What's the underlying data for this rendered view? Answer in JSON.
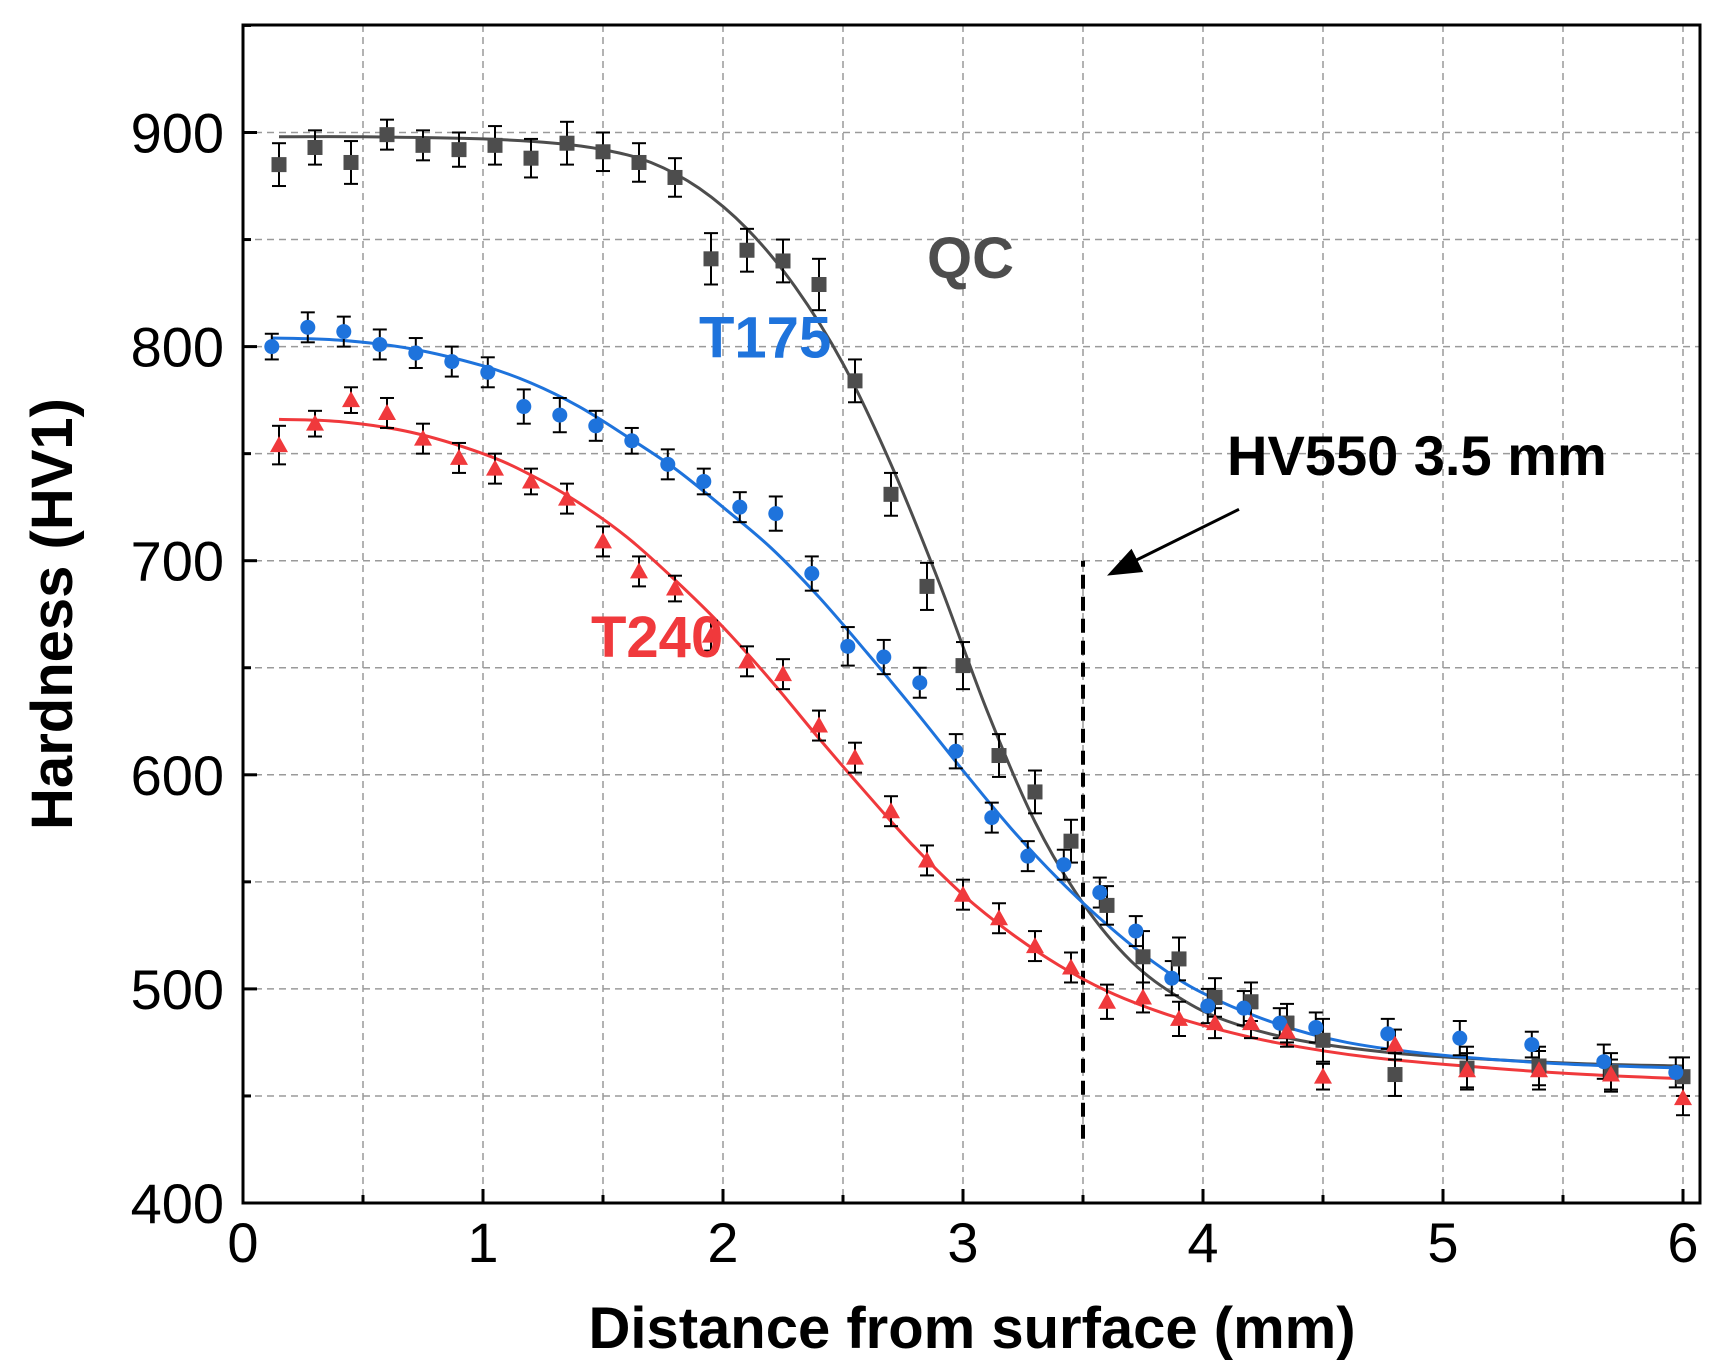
{
  "chart_data": {
    "type": "scatter",
    "title": "",
    "xlabel": "Distance from surface (mm)",
    "ylabel": "Hardness (HV1)",
    "xlim": [
      0,
      6.05
    ],
    "ylim": [
      400,
      950
    ],
    "x_ticks": [
      "0",
      "1",
      "2",
      "3",
      "4",
      "5",
      "6"
    ],
    "y_ticks": [
      "400",
      "500",
      "600",
      "700",
      "800",
      "900"
    ],
    "grid": true,
    "series": [
      {
        "name": "QC",
        "color": "#4d4d4d",
        "marker": "square",
        "points": [
          {
            "x": 0.15,
            "y": 885,
            "err": 10
          },
          {
            "x": 0.3,
            "y": 893,
            "err": 8
          },
          {
            "x": 0.45,
            "y": 886,
            "err": 10
          },
          {
            "x": 0.6,
            "y": 899,
            "err": 7
          },
          {
            "x": 0.75,
            "y": 894,
            "err": 7
          },
          {
            "x": 0.9,
            "y": 892,
            "err": 8
          },
          {
            "x": 1.05,
            "y": 894,
            "err": 9
          },
          {
            "x": 1.2,
            "y": 888,
            "err": 9
          },
          {
            "x": 1.35,
            "y": 895,
            "err": 10
          },
          {
            "x": 1.5,
            "y": 891,
            "err": 9
          },
          {
            "x": 1.65,
            "y": 886,
            "err": 9
          },
          {
            "x": 1.8,
            "y": 879,
            "err": 9
          },
          {
            "x": 1.95,
            "y": 841,
            "err": 12
          },
          {
            "x": 2.1,
            "y": 845,
            "err": 10
          },
          {
            "x": 2.25,
            "y": 840,
            "err": 10
          },
          {
            "x": 2.4,
            "y": 829,
            "err": 12
          },
          {
            "x": 2.55,
            "y": 784,
            "err": 10
          },
          {
            "x": 2.7,
            "y": 731,
            "err": 10
          },
          {
            "x": 2.85,
            "y": 688,
            "err": 11
          },
          {
            "x": 3.0,
            "y": 651,
            "err": 11
          },
          {
            "x": 3.15,
            "y": 609,
            "err": 10
          },
          {
            "x": 3.3,
            "y": 592,
            "err": 10
          },
          {
            "x": 3.45,
            "y": 569,
            "err": 10
          },
          {
            "x": 3.6,
            "y": 539,
            "err": 9
          },
          {
            "x": 3.75,
            "y": 515,
            "err": 12
          },
          {
            "x": 3.9,
            "y": 514,
            "err": 10
          },
          {
            "x": 4.05,
            "y": 496,
            "err": 9
          },
          {
            "x": 4.2,
            "y": 494,
            "err": 9
          },
          {
            "x": 4.35,
            "y": 484,
            "err": 9
          },
          {
            "x": 4.5,
            "y": 476,
            "err": 10
          },
          {
            "x": 4.8,
            "y": 460,
            "err": 10
          },
          {
            "x": 5.1,
            "y": 463,
            "err": 10
          },
          {
            "x": 5.4,
            "y": 464,
            "err": 9
          },
          {
            "x": 5.7,
            "y": 461,
            "err": 9
          },
          {
            "x": 6.0,
            "y": 459,
            "err": 9
          }
        ],
        "fit": [
          {
            "x": 0.15,
            "y": 898
          },
          {
            "x": 0.5,
            "y": 898
          },
          {
            "x": 1.0,
            "y": 897
          },
          {
            "x": 1.3,
            "y": 895
          },
          {
            "x": 1.5,
            "y": 892
          },
          {
            "x": 1.7,
            "y": 886
          },
          {
            "x": 1.9,
            "y": 874
          },
          {
            "x": 2.1,
            "y": 855
          },
          {
            "x": 2.3,
            "y": 828
          },
          {
            "x": 2.5,
            "y": 792
          },
          {
            "x": 2.7,
            "y": 745
          },
          {
            "x": 2.9,
            "y": 690
          },
          {
            "x": 3.1,
            "y": 630
          },
          {
            "x": 3.3,
            "y": 578
          },
          {
            "x": 3.5,
            "y": 540
          },
          {
            "x": 3.7,
            "y": 513
          },
          {
            "x": 3.9,
            "y": 496
          },
          {
            "x": 4.1,
            "y": 485
          },
          {
            "x": 4.4,
            "y": 476
          },
          {
            "x": 4.8,
            "y": 470
          },
          {
            "x": 5.2,
            "y": 467
          },
          {
            "x": 5.6,
            "y": 465
          },
          {
            "x": 6.0,
            "y": 464
          }
        ]
      },
      {
        "name": "T175",
        "color": "#1e73dc",
        "marker": "circle",
        "points": [
          {
            "x": 0.12,
            "y": 800,
            "err": 6
          },
          {
            "x": 0.27,
            "y": 809,
            "err": 7
          },
          {
            "x": 0.42,
            "y": 807,
            "err": 7
          },
          {
            "x": 0.57,
            "y": 801,
            "err": 7
          },
          {
            "x": 0.72,
            "y": 797,
            "err": 7
          },
          {
            "x": 0.87,
            "y": 793,
            "err": 7
          },
          {
            "x": 1.02,
            "y": 788,
            "err": 7
          },
          {
            "x": 1.17,
            "y": 772,
            "err": 8
          },
          {
            "x": 1.32,
            "y": 768,
            "err": 8
          },
          {
            "x": 1.47,
            "y": 763,
            "err": 7
          },
          {
            "x": 1.62,
            "y": 756,
            "err": 6
          },
          {
            "x": 1.77,
            "y": 745,
            "err": 7
          },
          {
            "x": 1.92,
            "y": 737,
            "err": 6
          },
          {
            "x": 2.07,
            "y": 725,
            "err": 7
          },
          {
            "x": 2.22,
            "y": 722,
            "err": 8
          },
          {
            "x": 2.37,
            "y": 694,
            "err": 8
          },
          {
            "x": 2.52,
            "y": 660,
            "err": 9
          },
          {
            "x": 2.67,
            "y": 655,
            "err": 8
          },
          {
            "x": 2.82,
            "y": 643,
            "err": 7
          },
          {
            "x": 2.97,
            "y": 611,
            "err": 8
          },
          {
            "x": 3.12,
            "y": 580,
            "err": 7
          },
          {
            "x": 3.27,
            "y": 562,
            "err": 7
          },
          {
            "x": 3.42,
            "y": 558,
            "err": 7
          },
          {
            "x": 3.57,
            "y": 545,
            "err": 7
          },
          {
            "x": 3.72,
            "y": 527,
            "err": 7
          },
          {
            "x": 3.87,
            "y": 505,
            "err": 8
          },
          {
            "x": 4.02,
            "y": 492,
            "err": 8
          },
          {
            "x": 4.17,
            "y": 491,
            "err": 8
          },
          {
            "x": 4.32,
            "y": 484,
            "err": 7
          },
          {
            "x": 4.47,
            "y": 482,
            "err": 7
          },
          {
            "x": 4.77,
            "y": 479,
            "err": 7
          },
          {
            "x": 5.07,
            "y": 477,
            "err": 8
          },
          {
            "x": 5.37,
            "y": 474,
            "err": 6
          },
          {
            "x": 5.67,
            "y": 466,
            "err": 8
          },
          {
            "x": 5.97,
            "y": 461,
            "err": 7
          }
        ],
        "fit": [
          {
            "x": 0.12,
            "y": 804
          },
          {
            "x": 0.4,
            "y": 803
          },
          {
            "x": 0.7,
            "y": 799
          },
          {
            "x": 1.0,
            "y": 791
          },
          {
            "x": 1.2,
            "y": 783
          },
          {
            "x": 1.4,
            "y": 772
          },
          {
            "x": 1.6,
            "y": 758
          },
          {
            "x": 1.8,
            "y": 743
          },
          {
            "x": 2.0,
            "y": 725
          },
          {
            "x": 2.2,
            "y": 706
          },
          {
            "x": 2.4,
            "y": 683
          },
          {
            "x": 2.6,
            "y": 657
          },
          {
            "x": 2.8,
            "y": 630
          },
          {
            "x": 3.0,
            "y": 602
          },
          {
            "x": 3.2,
            "y": 575
          },
          {
            "x": 3.4,
            "y": 551
          },
          {
            "x": 3.6,
            "y": 530
          },
          {
            "x": 3.8,
            "y": 512
          },
          {
            "x": 4.0,
            "y": 498
          },
          {
            "x": 4.3,
            "y": 484
          },
          {
            "x": 4.6,
            "y": 475
          },
          {
            "x": 5.0,
            "y": 469
          },
          {
            "x": 5.5,
            "y": 465
          },
          {
            "x": 6.0,
            "y": 463
          }
        ]
      },
      {
        "name": "T240",
        "color": "#f0393c",
        "marker": "triangle",
        "points": [
          {
            "x": 0.15,
            "y": 754,
            "err": 9
          },
          {
            "x": 0.3,
            "y": 764,
            "err": 6
          },
          {
            "x": 0.45,
            "y": 775,
            "err": 6
          },
          {
            "x": 0.6,
            "y": 769,
            "err": 7
          },
          {
            "x": 0.75,
            "y": 757,
            "err": 7
          },
          {
            "x": 0.9,
            "y": 748,
            "err": 7
          },
          {
            "x": 1.05,
            "y": 743,
            "err": 7
          },
          {
            "x": 1.2,
            "y": 737,
            "err": 6
          },
          {
            "x": 1.35,
            "y": 729,
            "err": 7
          },
          {
            "x": 1.5,
            "y": 709,
            "err": 7
          },
          {
            "x": 1.65,
            "y": 695,
            "err": 7
          },
          {
            "x": 1.8,
            "y": 687,
            "err": 6
          },
          {
            "x": 1.95,
            "y": 665,
            "err": 7
          },
          {
            "x": 2.1,
            "y": 653,
            "err": 7
          },
          {
            "x": 2.25,
            "y": 647,
            "err": 7
          },
          {
            "x": 2.4,
            "y": 623,
            "err": 7
          },
          {
            "x": 2.55,
            "y": 608,
            "err": 7
          },
          {
            "x": 2.7,
            "y": 583,
            "err": 7
          },
          {
            "x": 2.85,
            "y": 560,
            "err": 7
          },
          {
            "x": 3.0,
            "y": 544,
            "err": 7
          },
          {
            "x": 3.15,
            "y": 533,
            "err": 7
          },
          {
            "x": 3.3,
            "y": 520,
            "err": 7
          },
          {
            "x": 3.45,
            "y": 510,
            "err": 7
          },
          {
            "x": 3.6,
            "y": 494,
            "err": 8
          },
          {
            "x": 3.75,
            "y": 496,
            "err": 7
          },
          {
            "x": 3.9,
            "y": 486,
            "err": 8
          },
          {
            "x": 4.05,
            "y": 484,
            "err": 7
          },
          {
            "x": 4.2,
            "y": 484,
            "err": 7
          },
          {
            "x": 4.35,
            "y": 480,
            "err": 7
          },
          {
            "x": 4.5,
            "y": 459,
            "err": 6
          },
          {
            "x": 4.8,
            "y": 474,
            "err": 7
          },
          {
            "x": 5.1,
            "y": 462,
            "err": 8
          },
          {
            "x": 5.4,
            "y": 462,
            "err": 9
          },
          {
            "x": 5.7,
            "y": 460,
            "err": 7
          },
          {
            "x": 6.0,
            "y": 449,
            "err": 8
          }
        ],
        "fit": [
          {
            "x": 0.15,
            "y": 766
          },
          {
            "x": 0.4,
            "y": 765
          },
          {
            "x": 0.7,
            "y": 760
          },
          {
            "x": 1.0,
            "y": 750
          },
          {
            "x": 1.2,
            "y": 740
          },
          {
            "x": 1.4,
            "y": 727
          },
          {
            "x": 1.6,
            "y": 711
          },
          {
            "x": 1.8,
            "y": 691
          },
          {
            "x": 2.0,
            "y": 669
          },
          {
            "x": 2.2,
            "y": 644
          },
          {
            "x": 2.4,
            "y": 617
          },
          {
            "x": 2.6,
            "y": 591
          },
          {
            "x": 2.8,
            "y": 566
          },
          {
            "x": 3.0,
            "y": 544
          },
          {
            "x": 3.2,
            "y": 526
          },
          {
            "x": 3.4,
            "y": 511
          },
          {
            "x": 3.6,
            "y": 499
          },
          {
            "x": 3.8,
            "y": 490
          },
          {
            "x": 4.0,
            "y": 483
          },
          {
            "x": 4.3,
            "y": 475
          },
          {
            "x": 4.7,
            "y": 468
          },
          {
            "x": 5.2,
            "y": 463
          },
          {
            "x": 5.6,
            "y": 460
          },
          {
            "x": 6.0,
            "y": 458
          }
        ]
      }
    ],
    "annotations": [
      {
        "text": "QC",
        "x": 2.85,
        "y": 832,
        "color": "#4d4d4d"
      },
      {
        "text": "T175",
        "x": 1.9,
        "y": 795,
        "color": "#1e73dc"
      },
      {
        "text": "T240",
        "x": 1.45,
        "y": 655,
        "color": "#f0393c"
      },
      {
        "text": "HV550 3.5 mm",
        "x": 4.1,
        "y": 740,
        "color": "#000000"
      }
    ],
    "reference_line": {
      "x": 3.5,
      "y_from": 430,
      "y_to": 700,
      "style": "dashed",
      "color": "#000000"
    },
    "arrow": {
      "from": {
        "x": 4.15,
        "y": 724
      },
      "to": {
        "x": 3.6,
        "y": 693
      }
    }
  }
}
